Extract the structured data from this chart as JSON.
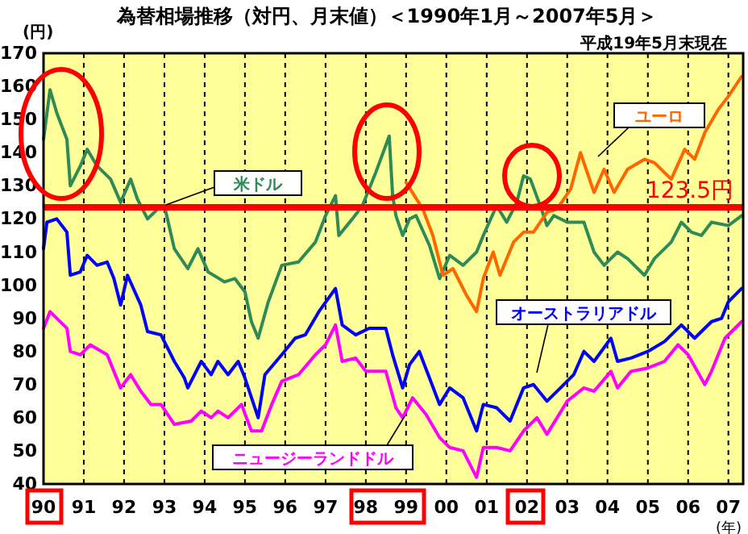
{
  "chart_data": {
    "type": "line",
    "title": "為替相場推移（対円、月末値）＜1990年1月～2007年5月＞",
    "ylabel": "(円)",
    "xlabel": "(年)",
    "annotations": [
      "平成19年5月末現在"
    ],
    "xlim": [
      "1990-01-01",
      "2007-05-15"
    ],
    "ylim": [
      40,
      170
    ],
    "xticks": [
      {
        "value": "1990",
        "label": "90"
      },
      {
        "value": "1991",
        "label": "91"
      },
      {
        "value": "1992",
        "label": "92"
      },
      {
        "value": "1993",
        "label": "93"
      },
      {
        "value": "1994",
        "label": "94"
      },
      {
        "value": "1995",
        "label": "95"
      },
      {
        "value": "1996",
        "label": "96"
      },
      {
        "value": "1997",
        "label": "97"
      },
      {
        "value": "1998",
        "label": "98"
      },
      {
        "value": "1999",
        "label": "99"
      },
      {
        "value": "2000",
        "label": "00"
      },
      {
        "value": "2001",
        "label": "01"
      },
      {
        "value": "2002",
        "label": "02"
      },
      {
        "value": "2003",
        "label": "03"
      },
      {
        "value": "2004",
        "label": "04"
      },
      {
        "value": "2005",
        "label": "05"
      },
      {
        "value": "2006",
        "label": "06"
      },
      {
        "value": "2007",
        "label": "07"
      }
    ],
    "yticks": [
      40,
      50,
      60,
      70,
      80,
      90,
      100,
      110,
      120,
      130,
      140,
      150,
      160,
      170
    ],
    "grid": "x",
    "legend": false,
    "line_style": "solid",
    "marker": "none",
    "ref_lines": [
      {
        "axis": "y",
        "value": 123.5,
        "label": "123.5円",
        "color": "#ff0000"
      }
    ],
    "series": [
      {
        "name": "米ドル",
        "color": "#2e8b57",
        "x": [
          "1990-01",
          "1990-03",
          "1990-05",
          "1990-08",
          "1990-09",
          "1990-12",
          "1991-02",
          "1991-05",
          "1991-09",
          "1991-12",
          "1992-03",
          "1992-05",
          "1992-08",
          "1992-12",
          "1993-01",
          "1993-04",
          "1993-08",
          "1993-11",
          "1994-02",
          "1994-07",
          "1994-10",
          "1995-01",
          "1995-03",
          "1995-05",
          "1995-08",
          "1995-12",
          "1996-05",
          "1996-10",
          "1997-01",
          "1997-04",
          "1997-05",
          "1997-09",
          "1997-12",
          "1998-04",
          "1998-08",
          "1998-09",
          "1998-10",
          "1998-12",
          "1999-02",
          "1999-04",
          "1999-08",
          "1999-11",
          "2000-02",
          "2000-06",
          "2000-10",
          "2000-12",
          "2001-04",
          "2001-07",
          "2001-10",
          "2001-12",
          "2002-02",
          "2002-05",
          "2002-07",
          "2002-09",
          "2003-01",
          "2003-06",
          "2003-09",
          "2003-12",
          "2004-04",
          "2004-07",
          "2004-12",
          "2005-03",
          "2005-08",
          "2005-11",
          "2006-02",
          "2006-05",
          "2006-08",
          "2007-01",
          "2007-05"
        ],
        "values": [
          144,
          159,
          152,
          144,
          130,
          136,
          141,
          136,
          132,
          125,
          132,
          126,
          120,
          124,
          124,
          111,
          105,
          111,
          104,
          101,
          102,
          98,
          89,
          84,
          95,
          106,
          107,
          113,
          121,
          127,
          115,
          120,
          124,
          134,
          145,
          127,
          121,
          115,
          120,
          121,
          112,
          102,
          109,
          106,
          110,
          115,
          124,
          119,
          125,
          133,
          132,
          124,
          118,
          121,
          119,
          119,
          110,
          106,
          110,
          108,
          103,
          108,
          113,
          119,
          116,
          115,
          119,
          118,
          121
        ]
      },
      {
        "name": "ユーロ",
        "color": "#ff6600",
        "x": [
          "1999-01",
          "1999-06",
          "1999-09",
          "1999-12",
          "2000-03",
          "2000-07",
          "2000-10",
          "2000-12",
          "2001-03",
          "2001-05",
          "2001-09",
          "2001-12",
          "2002-03",
          "2002-07",
          "2002-10",
          "2003-02",
          "2003-05",
          "2003-09",
          "2003-12",
          "2004-03",
          "2004-07",
          "2004-12",
          "2005-03",
          "2005-08",
          "2005-12",
          "2006-03",
          "2006-06",
          "2006-10",
          "2007-01",
          "2007-05"
        ],
        "values": [
          131,
          123,
          115,
          103,
          105,
          97,
          92,
          102,
          110,
          103,
          113,
          116,
          116,
          122,
          123,
          129,
          140,
          128,
          135,
          128,
          135,
          138,
          137,
          132,
          141,
          138,
          146,
          153,
          157,
          163
        ]
      },
      {
        "name": "オーストラリアドル",
        "color": "#0000ff",
        "x": [
          "1990-01",
          "1990-02",
          "1990-05",
          "1990-08",
          "1990-09",
          "1990-12",
          "1991-02",
          "1991-05",
          "1991-08",
          "1991-10",
          "1991-12",
          "1992-02",
          "1992-06",
          "1992-08",
          "1992-12",
          "1993-04",
          "1993-07",
          "1993-08",
          "1993-12",
          "1994-03",
          "1994-05",
          "1994-08",
          "1994-11",
          "1995-01",
          "1995-05",
          "1995-07",
          "1995-12",
          "1996-04",
          "1996-07",
          "1996-11",
          "1997-04",
          "1997-06",
          "1997-10",
          "1998-02",
          "1998-07",
          "1998-09",
          "1998-12",
          "1999-02",
          "1999-05",
          "1999-08",
          "1999-11",
          "2000-02",
          "2000-06",
          "2000-10",
          "2000-12",
          "2001-04",
          "2001-08",
          "2001-12",
          "2002-03",
          "2002-07",
          "2002-11",
          "2003-03",
          "2003-06",
          "2003-09",
          "2004-02",
          "2004-04",
          "2004-08",
          "2005-01",
          "2005-06",
          "2005-11",
          "2006-03",
          "2006-08",
          "2006-11",
          "2007-01",
          "2007-05"
        ],
        "values": [
          111,
          119,
          120,
          116,
          103,
          104,
          109,
          106,
          107,
          102,
          94,
          103,
          94,
          86,
          85,
          77,
          72,
          69,
          77,
          73,
          77,
          73,
          77,
          72,
          60,
          73,
          79,
          84,
          85,
          92,
          99,
          88,
          85,
          87,
          87,
          79,
          69,
          76,
          80,
          72,
          64,
          69,
          66,
          56,
          64,
          63,
          59,
          69,
          70,
          65,
          69,
          73,
          80,
          77,
          84,
          77,
          78,
          80,
          83,
          88,
          84,
          89,
          90,
          95,
          99
        ]
      },
      {
        "name": "ニュージーランドドル",
        "color": "#ff00ff",
        "x": [
          "1990-01",
          "1990-03",
          "1990-05",
          "1990-08",
          "1990-09",
          "1990-12",
          "1991-03",
          "1991-08",
          "1991-12",
          "1992-03",
          "1992-06",
          "1992-09",
          "1992-12",
          "1993-04",
          "1993-09",
          "1993-12",
          "1994-03",
          "1994-05",
          "1994-08",
          "1994-12",
          "1995-03",
          "1995-06",
          "1995-09",
          "1995-12",
          "1996-05",
          "1996-10",
          "1997-01",
          "1997-04",
          "1997-06",
          "1997-10",
          "1998-01",
          "1998-07",
          "1998-10",
          "1998-12",
          "1999-03",
          "1999-07",
          "1999-11",
          "2000-02",
          "2000-06",
          "2000-10",
          "2000-12",
          "2001-04",
          "2001-08",
          "2001-12",
          "2002-04",
          "2002-07",
          "2003-01",
          "2003-06",
          "2003-09",
          "2004-02",
          "2004-04",
          "2004-08",
          "2005-01",
          "2005-06",
          "2005-10",
          "2006-01",
          "2006-06",
          "2006-08",
          "2006-12",
          "2007-05"
        ],
        "values": [
          87,
          92,
          90,
          87,
          80,
          79,
          82,
          79,
          69,
          73,
          68,
          64,
          64,
          58,
          59,
          62,
          60,
          62,
          60,
          64,
          56,
          56,
          64,
          71,
          73,
          79,
          82,
          88,
          77,
          78,
          74,
          74,
          63,
          60,
          66,
          61,
          54,
          51,
          50,
          42,
          51,
          51,
          50,
          56,
          60,
          55,
          65,
          69,
          68,
          74,
          69,
          74,
          75,
          77,
          82,
          79,
          70,
          74,
          84,
          89
        ]
      }
    ]
  }
}
